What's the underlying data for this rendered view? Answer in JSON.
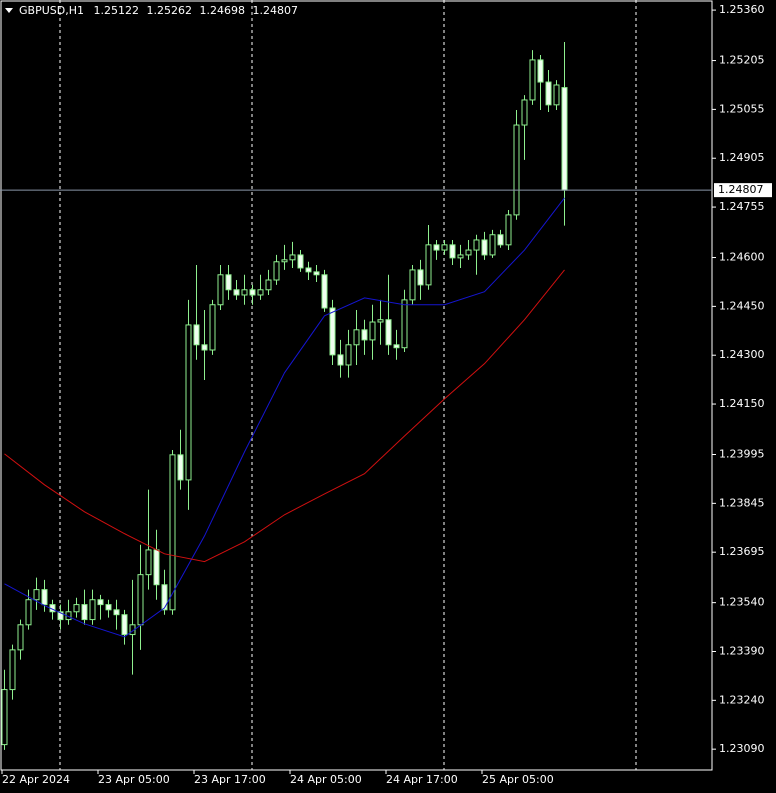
{
  "chart_data": {
    "type": "candlestick",
    "symbol": "GBPUSD,H1",
    "categories": [
      "22 Apr 2024",
      null,
      null,
      null,
      null,
      null,
      null,
      null,
      null,
      null,
      null,
      null,
      "23 Apr 05:00",
      null,
      null,
      null,
      null,
      null,
      null,
      null,
      null,
      null,
      null,
      null,
      "23 Apr 17:00",
      null,
      null,
      null,
      null,
      null,
      null,
      null,
      null,
      null,
      null,
      null,
      "24 Apr 05:00",
      null,
      null,
      null,
      null,
      null,
      null,
      null,
      null,
      null,
      null,
      null,
      "24 Apr 17:00",
      null,
      null,
      null,
      null,
      null,
      null,
      null,
      null,
      null,
      null,
      null,
      "25 Apr 05:00",
      null,
      null,
      null,
      null,
      null,
      null,
      null,
      null,
      null,
      null
    ],
    "ohlc": [
      [
        1.23104,
        1.23334,
        1.23088,
        1.23273
      ],
      [
        1.23273,
        1.23411,
        1.23242,
        1.23395
      ],
      [
        1.23395,
        1.23488,
        1.23365,
        1.23472
      ],
      [
        1.23472,
        1.2358,
        1.23457,
        1.23549
      ],
      [
        1.23549,
        1.23617,
        1.23518,
        1.2358
      ],
      [
        1.2358,
        1.2361,
        1.23512,
        1.23534
      ],
      [
        1.23534,
        1.23549,
        1.23488,
        1.23512
      ],
      [
        1.23512,
        1.23534,
        1.23457,
        1.23488
      ],
      [
        1.23488,
        1.23549,
        1.23472,
        1.23512
      ],
      [
        1.23512,
        1.23555,
        1.23494,
        1.23534
      ],
      [
        1.23534,
        1.2358,
        1.23472,
        1.23488
      ],
      [
        1.23488,
        1.2358,
        1.23472,
        1.23549
      ],
      [
        1.23549,
        1.23564,
        1.23488,
        1.23534
      ],
      [
        1.23534,
        1.23549,
        1.23494,
        1.23518
      ],
      [
        1.23518,
        1.23549,
        1.23457,
        1.23503
      ],
      [
        1.23503,
        1.23518,
        1.23411,
        1.23442
      ],
      [
        1.23442,
        1.2361,
        1.23319,
        1.23472
      ],
      [
        1.23472,
        1.23718,
        1.23395,
        1.23626
      ],
      [
        1.23626,
        1.23887,
        1.2358,
        1.23702
      ],
      [
        1.23702,
        1.23764,
        1.23549,
        1.23595
      ],
      [
        1.23595,
        1.23641,
        1.23503,
        1.23518
      ],
      [
        1.23518,
        1.24009,
        1.23503,
        1.23994
      ],
      [
        1.23994,
        1.24071,
        1.23887,
        1.23917
      ],
      [
        1.23917,
        1.2447,
        1.23825,
        1.24393
      ],
      [
        1.24393,
        1.24577,
        1.24286,
        1.24332
      ],
      [
        1.24332,
        1.24439,
        1.24224,
        1.24316
      ],
      [
        1.24316,
        1.2447,
        1.24301,
        1.24455
      ],
      [
        1.24455,
        1.24577,
        1.24439,
        1.24547
      ],
      [
        1.24547,
        1.24577,
        1.2447,
        1.24501
      ],
      [
        1.24501,
        1.24531,
        1.2447,
        1.24485
      ],
      [
        1.24485,
        1.24547,
        1.24455,
        1.24501
      ],
      [
        1.24501,
        1.24516,
        1.24455,
        1.24485
      ],
      [
        1.24485,
        1.24547,
        1.2447,
        1.24501
      ],
      [
        1.24501,
        1.24562,
        1.24485,
        1.24531
      ],
      [
        1.24531,
        1.24608,
        1.24516,
        1.24587
      ],
      [
        1.24587,
        1.24639,
        1.24562,
        1.24593
      ],
      [
        1.24593,
        1.24648,
        1.24568,
        1.24608
      ],
      [
        1.24608,
        1.24623,
        1.24556,
        1.24568
      ],
      [
        1.24568,
        1.24587,
        1.24531,
        1.24556
      ],
      [
        1.24556,
        1.24577,
        1.24525,
        1.24547
      ],
      [
        1.24547,
        1.24562,
        1.24433,
        1.24445
      ],
      [
        1.24445,
        1.2447,
        1.2427,
        1.24301
      ],
      [
        1.24301,
        1.24347,
        1.24231,
        1.2427
      ],
      [
        1.2427,
        1.24378,
        1.24231,
        1.24332
      ],
      [
        1.24332,
        1.24439,
        1.2427,
        1.24378
      ],
      [
        1.24378,
        1.24409,
        1.24301,
        1.24347
      ],
      [
        1.24347,
        1.24455,
        1.24286,
        1.24402
      ],
      [
        1.24402,
        1.2447,
        1.24332,
        1.24409
      ],
      [
        1.24409,
        1.24547,
        1.24301,
        1.24332
      ],
      [
        1.24332,
        1.24378,
        1.24286,
        1.24323
      ],
      [
        1.24323,
        1.24501,
        1.2431,
        1.2447
      ],
      [
        1.2447,
        1.24577,
        1.24455,
        1.24562
      ],
      [
        1.24562,
        1.24593,
        1.2447,
        1.24516
      ],
      [
        1.24516,
        1.247,
        1.24501,
        1.24639
      ],
      [
        1.24639,
        1.24654,
        1.24593,
        1.24623
      ],
      [
        1.24623,
        1.24654,
        1.24608,
        1.24639
      ],
      [
        1.24639,
        1.24654,
        1.24577,
        1.24599
      ],
      [
        1.24599,
        1.24639,
        1.24568,
        1.24608
      ],
      [
        1.24608,
        1.24654,
        1.24593,
        1.24623
      ],
      [
        1.24623,
        1.2467,
        1.24547,
        1.24654
      ],
      [
        1.24654,
        1.24679,
        1.24593,
        1.24608
      ],
      [
        1.24608,
        1.24685,
        1.24599,
        1.2467
      ],
      [
        1.2467,
        1.24685,
        1.2463,
        1.24639
      ],
      [
        1.24639,
        1.24746,
        1.24623,
        1.24731
      ],
      [
        1.24731,
        1.25053,
        1.24716,
        1.25007
      ],
      [
        1.25007,
        1.25099,
        1.249,
        1.25084
      ],
      [
        1.25084,
        1.25237,
        1.25069,
        1.25207
      ],
      [
        1.25207,
        1.25222,
        1.25053,
        1.25139
      ],
      [
        1.25139,
        1.25176,
        1.25047,
        1.25069
      ],
      [
        1.25069,
        1.25145,
        1.25053,
        1.2513
      ],
      [
        1.25122,
        1.25262,
        1.24698,
        1.24807
      ]
    ],
    "bull_color": "#000000",
    "bear_color": "#f0fff0",
    "wick_color": "#8ff08f",
    "lines": [
      {
        "color": "#1515d0",
        "x": [
          0,
          5,
          10,
          15,
          20,
          25,
          30,
          35,
          40,
          45,
          50,
          55,
          60,
          65,
          70
        ],
        "values": [
          1.23598,
          1.23531,
          1.23475,
          1.23435,
          1.23524,
          1.23745,
          1.24003,
          1.24246,
          1.24421,
          1.24476,
          1.24455,
          1.24455,
          1.24495,
          1.24623,
          1.24783
        ]
      },
      {
        "color": "#d01010",
        "x": [
          0,
          5,
          10,
          15,
          20,
          25,
          30,
          35,
          40,
          45,
          50,
          55,
          60,
          65,
          70
        ],
        "values": [
          1.23997,
          1.23902,
          1.23819,
          1.23752,
          1.2369,
          1.23666,
          1.23727,
          1.2381,
          1.23874,
          1.23936,
          1.24052,
          1.24166,
          1.24274,
          1.24409,
          1.24562
        ]
      }
    ],
    "ylim": [
      1.23026,
      1.25391
    ],
    "yticks": [
      {
        "value": 1.2536,
        "label": "1.25360"
      },
      {
        "value": 1.25205,
        "label": "1.25205"
      },
      {
        "value": 1.25055,
        "label": "1.25055"
      },
      {
        "value": 1.24905,
        "label": "1.24905"
      },
      {
        "value": 1.24755,
        "label": "1.24755"
      },
      {
        "value": 1.246,
        "label": "1.24600"
      },
      {
        "value": 1.2445,
        "label": "1.24450"
      },
      {
        "value": 1.243,
        "label": "1.24300"
      },
      {
        "value": 1.2415,
        "label": "1.24150"
      },
      {
        "value": 1.23995,
        "label": "1.23995"
      },
      {
        "value": 1.23845,
        "label": "1.23845"
      },
      {
        "value": 1.23695,
        "label": "1.23695"
      },
      {
        "value": 1.2354,
        "label": "1.23540"
      },
      {
        "value": 1.2339,
        "label": "1.23390"
      },
      {
        "value": 1.2324,
        "label": "1.23240"
      },
      {
        "value": 1.2309,
        "label": "1.23090"
      }
    ]
  }
}
